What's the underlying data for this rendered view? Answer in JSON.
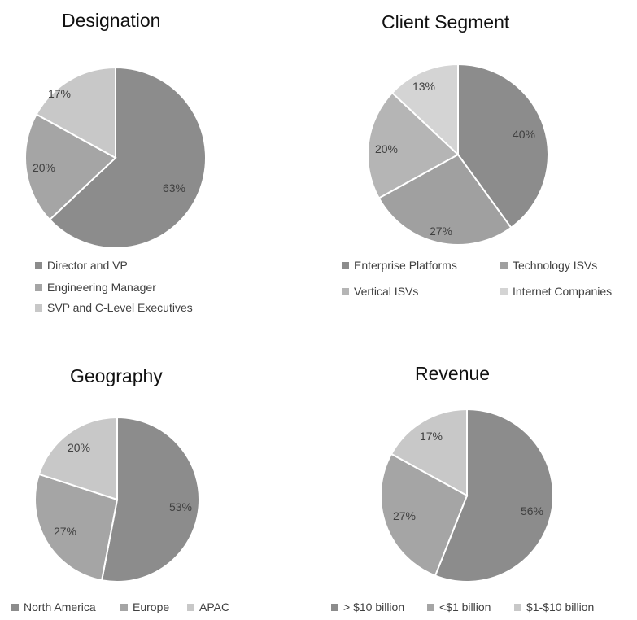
{
  "chart_data": [
    {
      "type": "pie",
      "title": "Designation",
      "categories": [
        "Director and VP",
        "Engineering Manager",
        "SVP and C-Level Executives"
      ],
      "values": [
        63,
        20,
        17
      ],
      "labels": [
        "63%",
        "20%",
        "17%"
      ],
      "colors": [
        "#8c8c8c",
        "#a5a5a5",
        "#c8c8c8"
      ],
      "legend_position": "bottom"
    },
    {
      "type": "pie",
      "title": "Client Segment",
      "categories": [
        "Enterprise Platforms",
        "Technology ISVs",
        "Vertical ISVs",
        "Internet Companies"
      ],
      "values": [
        40,
        27,
        20,
        13
      ],
      "labels": [
        "40%",
        "27%",
        "20%",
        "13%"
      ],
      "colors": [
        "#8c8c8c",
        "#a0a0a0",
        "#b5b5b5",
        "#d4d4d4"
      ],
      "legend_position": "bottom"
    },
    {
      "type": "pie",
      "title": "Geography",
      "categories": [
        "North America",
        "Europe",
        "APAC"
      ],
      "values": [
        53,
        27,
        20
      ],
      "labels": [
        "53%",
        "27%",
        "20%"
      ],
      "colors": [
        "#8c8c8c",
        "#a5a5a5",
        "#c8c8c8"
      ],
      "legend_position": "bottom"
    },
    {
      "type": "pie",
      "title": "Revenue",
      "categories": [
        "> $10 billion",
        "<$1 billion",
        "$1-$10 billion"
      ],
      "values": [
        56,
        27,
        17
      ],
      "labels": [
        "56%",
        "27%",
        "17%"
      ],
      "colors": [
        "#8c8c8c",
        "#a5a5a5",
        "#c8c8c8"
      ],
      "legend_position": "bottom"
    }
  ]
}
